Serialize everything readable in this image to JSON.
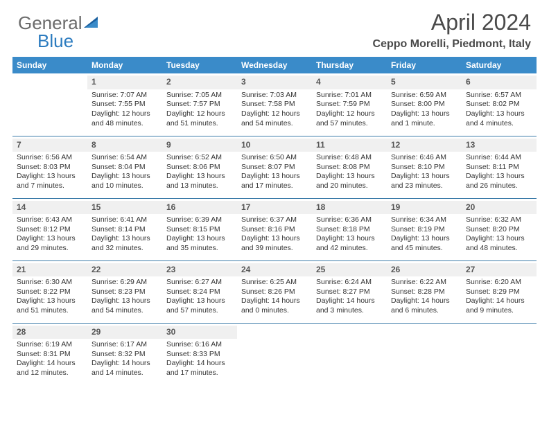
{
  "logo": {
    "part1": "General",
    "part2": "Blue"
  },
  "header": {
    "title": "April 2024",
    "subtitle": "Ceppo Morelli, Piedmont, Italy"
  },
  "colors": {
    "header_bg": "#3a8bc9",
    "header_text": "#ffffff",
    "row_border": "#3a7aa8",
    "daynum_bg": "#f0f0f0",
    "body_text": "#333333",
    "title_text": "#4a4a4a",
    "logo_gray": "#6b6b6b",
    "logo_blue": "#2b7bbf"
  },
  "weekdays": [
    "Sunday",
    "Monday",
    "Tuesday",
    "Wednesday",
    "Thursday",
    "Friday",
    "Saturday"
  ],
  "start_weekday": 1,
  "days": [
    {
      "n": 1,
      "sunrise": "7:07 AM",
      "sunset": "7:55 PM",
      "daylight": "12 hours and 48 minutes."
    },
    {
      "n": 2,
      "sunrise": "7:05 AM",
      "sunset": "7:57 PM",
      "daylight": "12 hours and 51 minutes."
    },
    {
      "n": 3,
      "sunrise": "7:03 AM",
      "sunset": "7:58 PM",
      "daylight": "12 hours and 54 minutes."
    },
    {
      "n": 4,
      "sunrise": "7:01 AM",
      "sunset": "7:59 PM",
      "daylight": "12 hours and 57 minutes."
    },
    {
      "n": 5,
      "sunrise": "6:59 AM",
      "sunset": "8:00 PM",
      "daylight": "13 hours and 1 minute."
    },
    {
      "n": 6,
      "sunrise": "6:57 AM",
      "sunset": "8:02 PM",
      "daylight": "13 hours and 4 minutes."
    },
    {
      "n": 7,
      "sunrise": "6:56 AM",
      "sunset": "8:03 PM",
      "daylight": "13 hours and 7 minutes."
    },
    {
      "n": 8,
      "sunrise": "6:54 AM",
      "sunset": "8:04 PM",
      "daylight": "13 hours and 10 minutes."
    },
    {
      "n": 9,
      "sunrise": "6:52 AM",
      "sunset": "8:06 PM",
      "daylight": "13 hours and 13 minutes."
    },
    {
      "n": 10,
      "sunrise": "6:50 AM",
      "sunset": "8:07 PM",
      "daylight": "13 hours and 17 minutes."
    },
    {
      "n": 11,
      "sunrise": "6:48 AM",
      "sunset": "8:08 PM",
      "daylight": "13 hours and 20 minutes."
    },
    {
      "n": 12,
      "sunrise": "6:46 AM",
      "sunset": "8:10 PM",
      "daylight": "13 hours and 23 minutes."
    },
    {
      "n": 13,
      "sunrise": "6:44 AM",
      "sunset": "8:11 PM",
      "daylight": "13 hours and 26 minutes."
    },
    {
      "n": 14,
      "sunrise": "6:43 AM",
      "sunset": "8:12 PM",
      "daylight": "13 hours and 29 minutes."
    },
    {
      "n": 15,
      "sunrise": "6:41 AM",
      "sunset": "8:14 PM",
      "daylight": "13 hours and 32 minutes."
    },
    {
      "n": 16,
      "sunrise": "6:39 AM",
      "sunset": "8:15 PM",
      "daylight": "13 hours and 35 minutes."
    },
    {
      "n": 17,
      "sunrise": "6:37 AM",
      "sunset": "8:16 PM",
      "daylight": "13 hours and 39 minutes."
    },
    {
      "n": 18,
      "sunrise": "6:36 AM",
      "sunset": "8:18 PM",
      "daylight": "13 hours and 42 minutes."
    },
    {
      "n": 19,
      "sunrise": "6:34 AM",
      "sunset": "8:19 PM",
      "daylight": "13 hours and 45 minutes."
    },
    {
      "n": 20,
      "sunrise": "6:32 AM",
      "sunset": "8:20 PM",
      "daylight": "13 hours and 48 minutes."
    },
    {
      "n": 21,
      "sunrise": "6:30 AM",
      "sunset": "8:22 PM",
      "daylight": "13 hours and 51 minutes."
    },
    {
      "n": 22,
      "sunrise": "6:29 AM",
      "sunset": "8:23 PM",
      "daylight": "13 hours and 54 minutes."
    },
    {
      "n": 23,
      "sunrise": "6:27 AM",
      "sunset": "8:24 PM",
      "daylight": "13 hours and 57 minutes."
    },
    {
      "n": 24,
      "sunrise": "6:25 AM",
      "sunset": "8:26 PM",
      "daylight": "14 hours and 0 minutes."
    },
    {
      "n": 25,
      "sunrise": "6:24 AM",
      "sunset": "8:27 PM",
      "daylight": "14 hours and 3 minutes."
    },
    {
      "n": 26,
      "sunrise": "6:22 AM",
      "sunset": "8:28 PM",
      "daylight": "14 hours and 6 minutes."
    },
    {
      "n": 27,
      "sunrise": "6:20 AM",
      "sunset": "8:29 PM",
      "daylight": "14 hours and 9 minutes."
    },
    {
      "n": 28,
      "sunrise": "6:19 AM",
      "sunset": "8:31 PM",
      "daylight": "14 hours and 12 minutes."
    },
    {
      "n": 29,
      "sunrise": "6:17 AM",
      "sunset": "8:32 PM",
      "daylight": "14 hours and 14 minutes."
    },
    {
      "n": 30,
      "sunrise": "6:16 AM",
      "sunset": "8:33 PM",
      "daylight": "14 hours and 17 minutes."
    }
  ],
  "labels": {
    "sunrise": "Sunrise:",
    "sunset": "Sunset:",
    "daylight": "Daylight:"
  }
}
